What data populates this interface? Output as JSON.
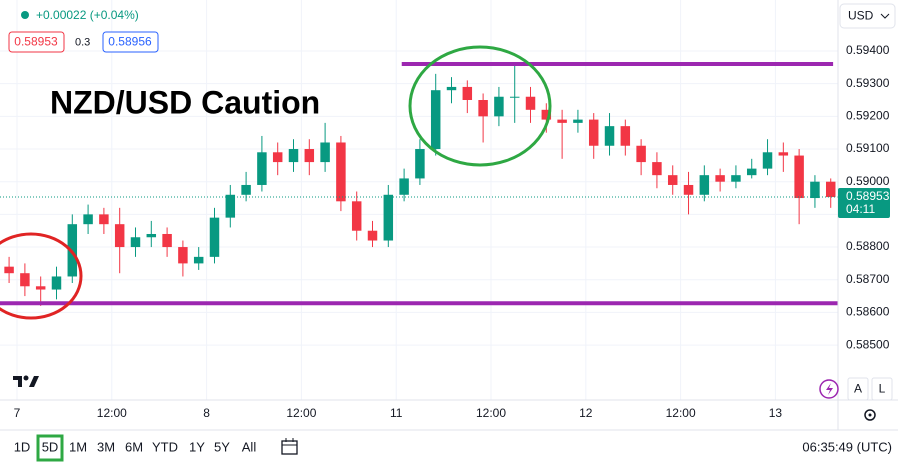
{
  "chart_data": {
    "type": "candlestick",
    "title": "NZD/USD Caution",
    "header": {
      "change": "+0.00022 (+0.04%)",
      "bid": "0.58953",
      "spread": "0.3",
      "ask": "0.58956",
      "currency": "USD"
    },
    "x": [
      -1,
      1,
      3,
      5,
      7,
      9,
      11,
      13,
      15,
      17,
      19,
      21,
      23,
      25,
      27,
      29,
      31,
      33,
      35,
      37,
      39,
      41,
      43,
      45,
      47,
      49,
      51,
      53,
      55,
      57,
      59,
      61,
      63,
      65,
      67,
      69,
      71,
      73,
      75,
      77,
      79,
      81,
      83,
      85,
      87,
      89,
      91,
      93,
      95,
      97,
      99,
      101,
      103
    ],
    "open": [
      0.5874,
      0.5872,
      0.5868,
      0.5867,
      0.5871,
      0.5887,
      0.589,
      0.5887,
      0.588,
      0.5883,
      0.5884,
      0.588,
      0.5875,
      0.5877,
      0.5889,
      0.5896,
      0.5899,
      0.5909,
      0.5906,
      0.591,
      0.5906,
      0.5912,
      0.5894,
      0.5885,
      0.5882,
      0.5896,
      0.5901,
      0.591,
      0.5928,
      0.5929,
      0.5925,
      0.592,
      0.5926,
      0.5926,
      0.5922,
      0.5919,
      0.5918,
      0.5919,
      0.5911,
      0.5917,
      0.5911,
      0.5906,
      0.5902,
      0.5899,
      0.5896,
      0.5902,
      0.59,
      0.5902,
      0.5904,
      0.5909,
      0.5908,
      0.5895,
      0.59
    ],
    "high": [
      0.5877,
      0.5875,
      0.5871,
      0.5874,
      0.589,
      0.5893,
      0.5892,
      0.5892,
      0.5886,
      0.5888,
      0.5886,
      0.5882,
      0.588,
      0.5892,
      0.5899,
      0.5903,
      0.5914,
      0.5912,
      0.5913,
      0.5913,
      0.5918,
      0.5914,
      0.5897,
      0.5888,
      0.5899,
      0.5904,
      0.5913,
      0.5933,
      0.5932,
      0.5931,
      0.5927,
      0.5929,
      0.5936,
      0.5929,
      0.5924,
      0.5922,
      0.5922,
      0.5921,
      0.5921,
      0.5919,
      0.5913,
      0.5909,
      0.5905,
      0.5903,
      0.5905,
      0.5904,
      0.5905,
      0.5907,
      0.5913,
      0.5912,
      0.591,
      0.5902,
      0.5901
    ],
    "low": [
      0.5869,
      0.5865,
      0.5862,
      0.5864,
      0.5869,
      0.5884,
      0.5884,
      0.5872,
      0.5877,
      0.588,
      0.5877,
      0.5871,
      0.5873,
      0.5875,
      0.5886,
      0.5894,
      0.5897,
      0.5902,
      0.5903,
      0.5902,
      0.5903,
      0.5891,
      0.5882,
      0.588,
      0.588,
      0.5894,
      0.5899,
      0.5908,
      0.5924,
      0.5921,
      0.5912,
      0.5917,
      0.5918,
      0.5918,
      0.5915,
      0.5907,
      0.5915,
      0.5907,
      0.5908,
      0.5908,
      0.5902,
      0.5898,
      0.5896,
      0.589,
      0.5894,
      0.5897,
      0.5898,
      0.5901,
      0.5902,
      0.5903,
      0.5887,
      0.5892,
      0.5892
    ],
    "close": [
      0.5872,
      0.5868,
      0.5867,
      0.5871,
      0.5887,
      0.589,
      0.5887,
      0.588,
      0.5883,
      0.5884,
      0.588,
      0.5875,
      0.5877,
      0.5889,
      0.5896,
      0.5899,
      0.5909,
      0.5906,
      0.591,
      0.5906,
      0.5912,
      0.5894,
      0.5885,
      0.5882,
      0.5896,
      0.5901,
      0.591,
      0.5928,
      0.5929,
      0.5925,
      0.592,
      0.5926,
      0.5926,
      0.5922,
      0.5919,
      0.5918,
      0.5919,
      0.5911,
      0.5917,
      0.5911,
      0.5906,
      0.5902,
      0.5899,
      0.5896,
      0.5902,
      0.59,
      0.5902,
      0.5904,
      0.5909,
      0.5908,
      0.5895,
      0.59,
      0.58953
    ],
    "up_color": "#089981",
    "down_color": "#f23645",
    "xlim": [
      -2.15,
      103.92
    ],
    "xticks": [
      {
        "value": 0,
        "label": "7"
      },
      {
        "value": 12,
        "label": "12:00"
      },
      {
        "value": 24,
        "label": "8"
      },
      {
        "value": 36,
        "label": "12:00"
      },
      {
        "value": 48,
        "label": "11"
      },
      {
        "value": 60,
        "label": "12:00"
      },
      {
        "value": 72,
        "label": "12"
      },
      {
        "value": 84,
        "label": "12:00"
      },
      {
        "value": 96,
        "label": "13"
      }
    ],
    "ylim": [
      0.58332,
      0.59556
    ],
    "yticks": [
      {
        "value": 0.594,
        "label": "0.59400"
      },
      {
        "value": 0.593,
        "label": "0.59300"
      },
      {
        "value": 0.592,
        "label": "0.59200"
      },
      {
        "value": 0.591,
        "label": "0.59100"
      },
      {
        "value": 0.59,
        "label": "0.59000"
      },
      {
        "value": 0.589,
        "label": "0.58900"
      },
      {
        "value": 0.588,
        "label": "0.58800"
      },
      {
        "value": 0.587,
        "label": "0.58700"
      },
      {
        "value": 0.586,
        "label": "0.58600"
      },
      {
        "value": 0.585,
        "label": "0.58500"
      }
    ],
    "grid": true,
    "last_price": 0.58953,
    "countdown": "04:11",
    "levels": [
      {
        "value": 0.5936,
        "xrange": [
          48.7,
          103.3
        ],
        "color": "#9c27b0"
      },
      {
        "value": 0.58628,
        "xrange": [
          -2.15,
          103.92
        ],
        "color": "#9c27b0"
      }
    ],
    "ranges": [
      "1D",
      "5D",
      "1M",
      "3M",
      "6M",
      "YTD",
      "1Y",
      "5Y",
      "All"
    ],
    "active_range": 1,
    "clock": "06:35:49 (UTC)",
    "scale_buttons": [
      "A",
      "L"
    ]
  }
}
